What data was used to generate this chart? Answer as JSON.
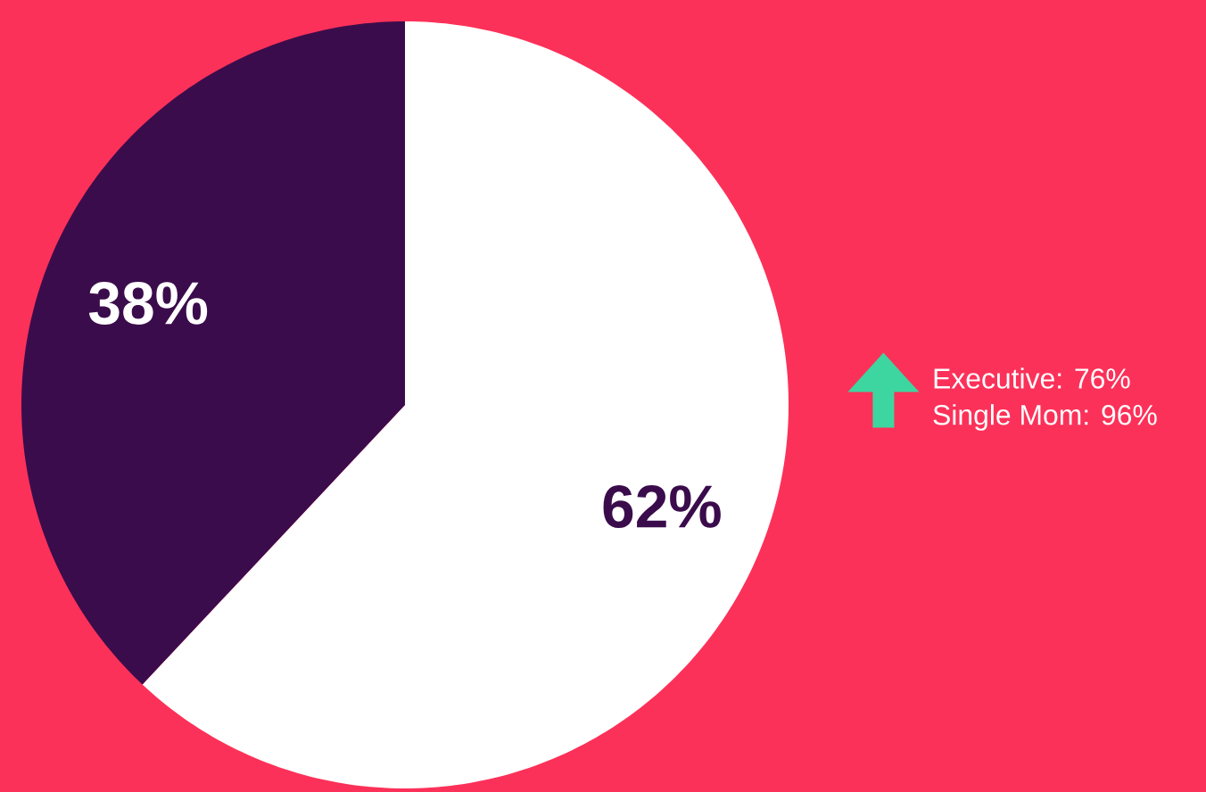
{
  "chart_data": {
    "type": "pie",
    "categories": [
      null,
      null
    ],
    "values": [
      62,
      38
    ],
    "colors": [
      "#ffffff",
      "#3b0c4c"
    ],
    "value_labels": [
      "62%",
      "38%"
    ],
    "annotations": [
      "Executive: 76%",
      "Single Mom: 96%"
    ]
  }
}
